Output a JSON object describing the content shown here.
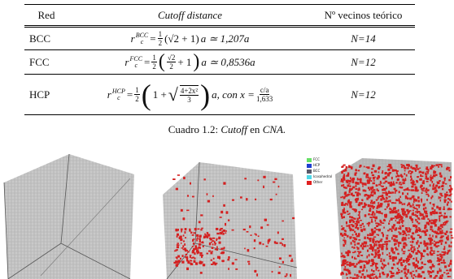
{
  "table": {
    "header": [
      "Red",
      "Cutoff distance",
      "Nº vecinos teórico"
    ],
    "rows": [
      {
        "name": "BCC",
        "cutoff": [
          "r",
          "c",
          "BCC",
          "=",
          "1",
          "2",
          "(√2 + 1)",
          "a ≃ 1,207a"
        ],
        "neighbors": "N=14"
      },
      {
        "name": "FCC",
        "cutoff": [
          "r",
          "c",
          "FCC",
          "=",
          "1",
          "2",
          "(",
          "√2",
          "2",
          "+ 1",
          ")",
          "a ≃ 0,8536a"
        ],
        "neighbors": "N=12"
      },
      {
        "name": "HCP",
        "cutoff": [
          "r",
          "c",
          "HCP",
          "=",
          "1",
          "2",
          "(",
          "1 +",
          "√",
          "4+2x²",
          "3",
          ")",
          "a, con x =",
          "c/a",
          "1,633"
        ],
        "neighbors": "N=12"
      }
    ]
  },
  "caption": {
    "label": "Cuadro 1.2:",
    "term": "Cutoff",
    "middle": "en",
    "acronym": "CNA."
  },
  "legend": [
    "FCC",
    "HCP",
    "BCC",
    "Icosahedral",
    "Other"
  ]
}
